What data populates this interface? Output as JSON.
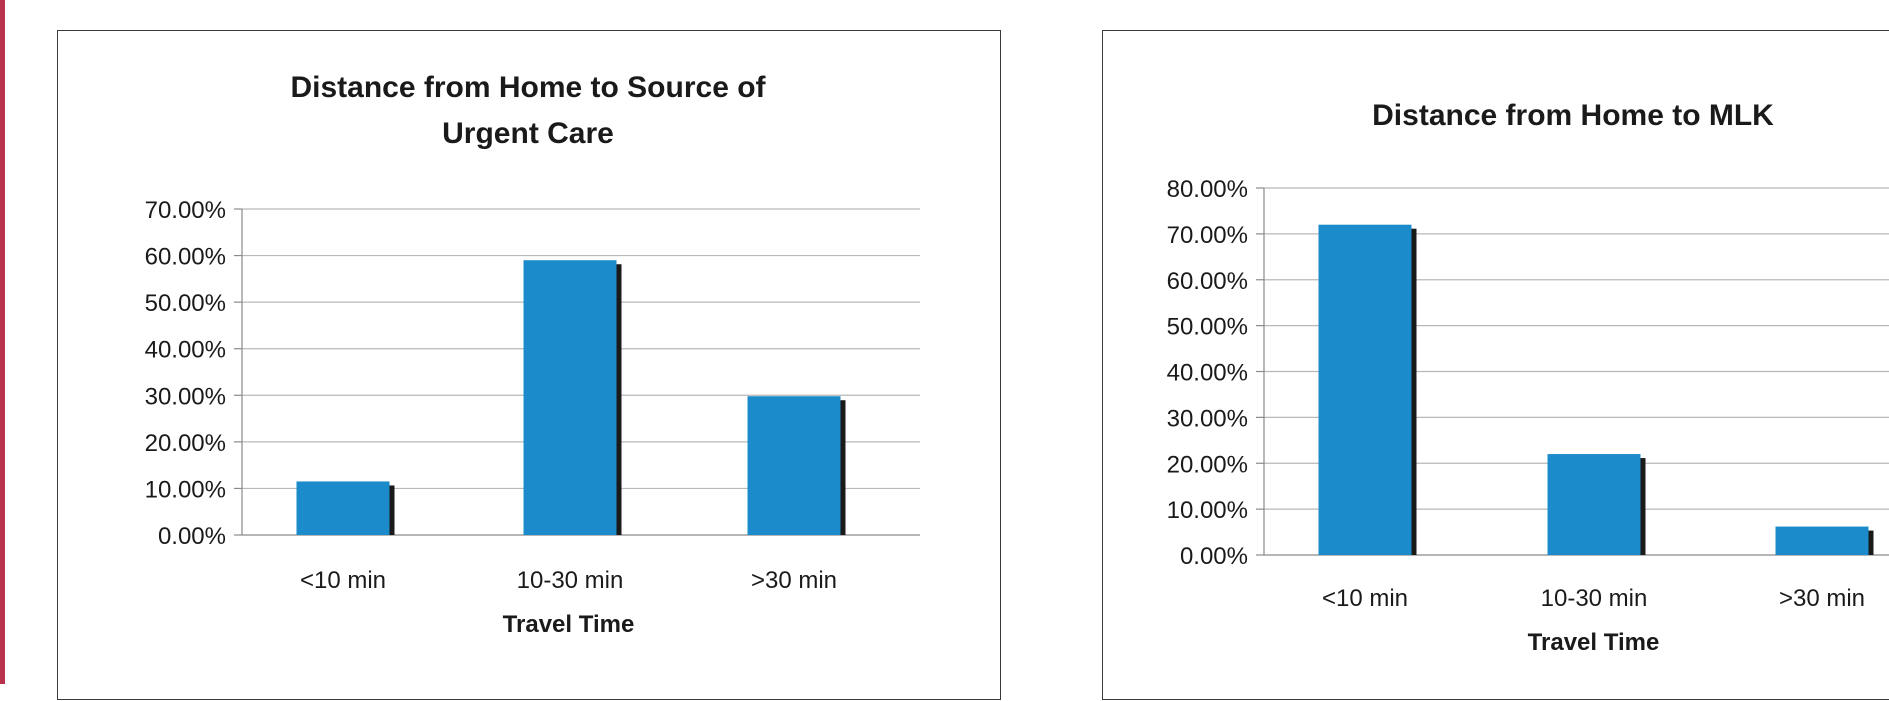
{
  "chart_data": [
    {
      "type": "bar",
      "title": "Distance from Home to Source of Urgent Care",
      "title_lines": [
        "Distance from Home to Source of",
        "Urgent Care"
      ],
      "categories": [
        "<10 min",
        "10-30 min",
        ">30 min"
      ],
      "values": [
        11.5,
        59,
        29.8
      ],
      "xlabel": "Travel Time",
      "ylabel": "",
      "ylim": [
        0,
        70
      ],
      "yticks": [
        "0.00%",
        "10.00%",
        "20.00%",
        "30.00%",
        "40.00%",
        "50.00%",
        "60.00%",
        "70.00%"
      ],
      "value_format": "percent",
      "grid": true,
      "legend": "none",
      "colors": {
        "bar": "#1b8bcb",
        "shadow": "#1a1a1a",
        "grid": "#b8b8b8"
      }
    },
    {
      "type": "bar",
      "title": "Distance from Home to MLK",
      "title_lines": [
        "Distance from Home to MLK"
      ],
      "categories": [
        "<10 min",
        "10-30 min",
        ">30 min"
      ],
      "values": [
        72,
        22,
        6.2
      ],
      "xlabel": "Travel Time",
      "ylabel": "",
      "ylim": [
        0,
        80
      ],
      "yticks": [
        "0.00%",
        "10.00%",
        "20.00%",
        "30.00%",
        "40.00%",
        "50.00%",
        "60.00%",
        "70.00%",
        "80.00%"
      ],
      "value_format": "percent",
      "grid": true,
      "legend": "none",
      "colors": {
        "bar": "#1b8bcb",
        "shadow": "#1a1a1a",
        "grid": "#b8b8b8"
      }
    }
  ]
}
